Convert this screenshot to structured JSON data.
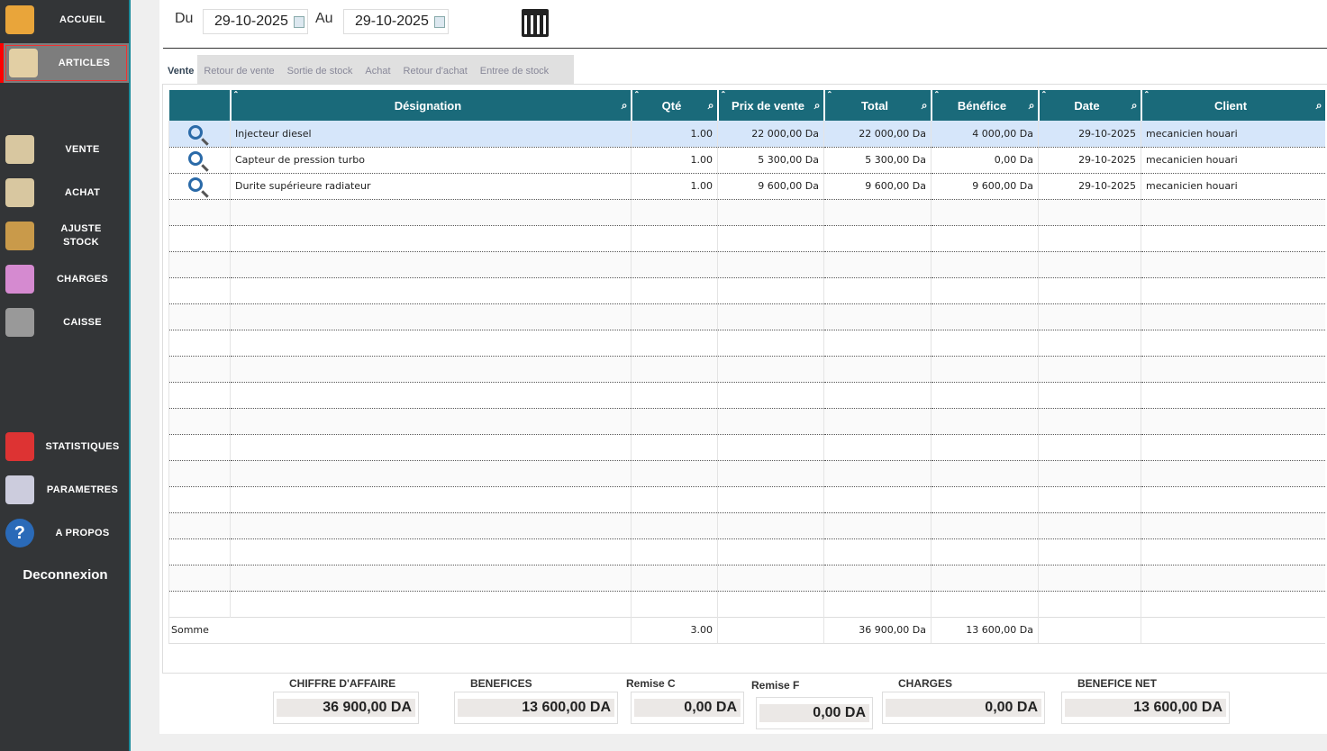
{
  "sidebar": {
    "items": [
      {
        "label": "ACCUEIL",
        "icon": "house-icon"
      },
      {
        "label": "ARTICLES",
        "icon": "crate-icon",
        "active": true
      },
      {
        "label": "VENTE",
        "icon": "bag-icon"
      },
      {
        "label": "ACHAT",
        "icon": "bag-icon"
      },
      {
        "label": "AJUSTE STOCK",
        "icon": "boxes-icon"
      },
      {
        "label": "CHARGES",
        "icon": "money-icon"
      },
      {
        "label": "CAISSE",
        "icon": "safe-icon"
      },
      {
        "label": "STATISTIQUES",
        "icon": "pie-chart-icon"
      },
      {
        "label": "PARAMETRES",
        "icon": "gear-icon"
      },
      {
        "label": "A PROPOS",
        "icon": "help-icon"
      }
    ],
    "logout": "Deconnexion"
  },
  "filter": {
    "from_label": "Du",
    "from": "29-10-2025",
    "to_label": "Au",
    "to": "29-10-2025"
  },
  "tabs": [
    "Vente",
    "Retour de vente",
    "Sortie de stock",
    "Achat",
    "Retour d'achat",
    "Entree de stock"
  ],
  "table": {
    "columns": [
      "",
      "Désignation",
      "Qté",
      "Prix de vente",
      "Total",
      "Bénéfice",
      "Date",
      "Client"
    ],
    "rows": [
      [
        "Injecteur diesel",
        "1.00",
        "22 000,00 Da",
        "22 000,00 Da",
        "4 000,00 Da",
        "29-10-2025",
        "mecanicien houari"
      ],
      [
        "Capteur de pression turbo",
        "1.00",
        "5 300,00 Da",
        "5 300,00 Da",
        "0,00 Da",
        "29-10-2025",
        "mecanicien houari"
      ],
      [
        "Durite supérieure radiateur",
        "1.00",
        "9 600,00 Da",
        "9 600,00 Da",
        "9 600,00 Da",
        "29-10-2025",
        "mecanicien houari"
      ]
    ],
    "sum": {
      "label": "Somme",
      "qte": "3.00",
      "total": "36 900,00 Da",
      "benefice": "13 600,00 Da"
    }
  },
  "kpis": [
    {
      "label": "CHIFFRE D'AFFAIRE",
      "value": "36 900,00 DA"
    },
    {
      "label": "BENEFICES",
      "value": "13 600,00 DA"
    },
    {
      "label": "Remise C",
      "value": "0,00 DA"
    },
    {
      "label": "Remise F",
      "value": "0,00 DA"
    },
    {
      "label": "CHARGES",
      "value": "0,00 DA"
    },
    {
      "label": "BENEFICE NET",
      "value": "13 600,00 DA"
    }
  ]
}
